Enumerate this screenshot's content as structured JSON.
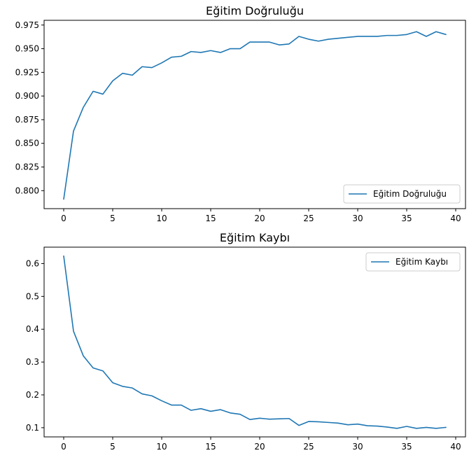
{
  "colors": {
    "line": "#1f77b4",
    "axes": "#000000",
    "background": "#ffffff"
  },
  "chart_data": [
    {
      "type": "line",
      "title": "Eğitim Doğruluğu",
      "xlabel": "",
      "ylabel": "",
      "xlim": [
        -2.0,
        41.0
      ],
      "ylim": [
        0.781,
        0.98
      ],
      "x_ticks": [
        0,
        5,
        10,
        15,
        20,
        25,
        30,
        35,
        40
      ],
      "y_ticks": [
        0.8,
        0.825,
        0.85,
        0.875,
        0.9,
        0.925,
        0.95,
        0.975
      ],
      "y_tick_labels": [
        "0.800",
        "0.825",
        "0.850",
        "0.875",
        "0.900",
        "0.925",
        "0.950",
        "0.975"
      ],
      "legend_position": "lower right",
      "grid": false,
      "series": [
        {
          "name": "Eğitim Doğruluğu",
          "color": "#1f77b4",
          "x": [
            0,
            1,
            2,
            3,
            4,
            5,
            6,
            7,
            8,
            9,
            10,
            11,
            12,
            13,
            14,
            15,
            16,
            17,
            18,
            19,
            20,
            21,
            22,
            23,
            24,
            25,
            26,
            27,
            28,
            29,
            30,
            31,
            32,
            33,
            34,
            35,
            36,
            37,
            38,
            39
          ],
          "values": [
            0.791,
            0.863,
            0.888,
            0.905,
            0.902,
            0.916,
            0.924,
            0.922,
            0.931,
            0.93,
            0.935,
            0.941,
            0.942,
            0.947,
            0.946,
            0.948,
            0.946,
            0.95,
            0.95,
            0.957,
            0.957,
            0.957,
            0.954,
            0.955,
            0.963,
            0.96,
            0.958,
            0.96,
            0.961,
            0.962,
            0.963,
            0.963,
            0.963,
            0.964,
            0.964,
            0.965,
            0.968,
            0.963,
            0.968,
            0.965
          ]
        }
      ]
    },
    {
      "type": "line",
      "title": "Eğitim Kaybı",
      "xlabel": "",
      "ylabel": "",
      "xlim": [
        -2.0,
        41.0
      ],
      "ylim": [
        0.072,
        0.65
      ],
      "x_ticks": [
        0,
        5,
        10,
        15,
        20,
        25,
        30,
        35,
        40
      ],
      "y_ticks": [
        0.1,
        0.2,
        0.3,
        0.4,
        0.5,
        0.6
      ],
      "y_tick_labels": [
        "0.1",
        "0.2",
        "0.3",
        "0.4",
        "0.5",
        "0.6"
      ],
      "legend_position": "upper right",
      "grid": false,
      "series": [
        {
          "name": "Eğitim Kaybı",
          "color": "#1f77b4",
          "x": [
            0,
            1,
            2,
            3,
            4,
            5,
            6,
            7,
            8,
            9,
            10,
            11,
            12,
            13,
            14,
            15,
            16,
            17,
            18,
            19,
            20,
            21,
            22,
            23,
            24,
            25,
            26,
            27,
            28,
            29,
            30,
            31,
            32,
            33,
            34,
            35,
            36,
            37,
            38,
            39
          ],
          "values": [
            0.623,
            0.394,
            0.319,
            0.282,
            0.273,
            0.237,
            0.226,
            0.221,
            0.203,
            0.197,
            0.182,
            0.169,
            0.169,
            0.153,
            0.158,
            0.15,
            0.155,
            0.145,
            0.141,
            0.125,
            0.129,
            0.126,
            0.127,
            0.128,
            0.107,
            0.119,
            0.118,
            0.116,
            0.114,
            0.109,
            0.111,
            0.106,
            0.105,
            0.102,
            0.098,
            0.104,
            0.098,
            0.101,
            0.098,
            0.101
          ]
        }
      ]
    }
  ]
}
